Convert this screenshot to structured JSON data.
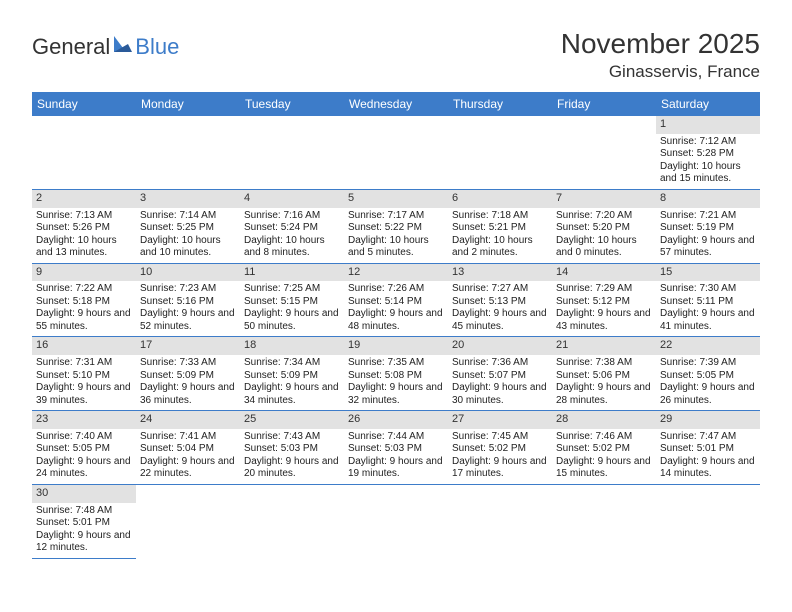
{
  "logo": {
    "general": "General",
    "blue": "Blue"
  },
  "title": "November 2025",
  "location": "Ginasservis, France",
  "weekday_bg": "#3d7cc9",
  "weekday_fg": "#ffffff",
  "band_bg": "#e2e2e2",
  "cell_border": "#3d7cc9",
  "weekdays": [
    "Sunday",
    "Monday",
    "Tuesday",
    "Wednesday",
    "Thursday",
    "Friday",
    "Saturday"
  ],
  "first_weekday_index": 6,
  "days": [
    {
      "n": "1",
      "sunrise": "Sunrise: 7:12 AM",
      "sunset": "Sunset: 5:28 PM",
      "daylight": "Daylight: 10 hours and 15 minutes."
    },
    {
      "n": "2",
      "sunrise": "Sunrise: 7:13 AM",
      "sunset": "Sunset: 5:26 PM",
      "daylight": "Daylight: 10 hours and 13 minutes."
    },
    {
      "n": "3",
      "sunrise": "Sunrise: 7:14 AM",
      "sunset": "Sunset: 5:25 PM",
      "daylight": "Daylight: 10 hours and 10 minutes."
    },
    {
      "n": "4",
      "sunrise": "Sunrise: 7:16 AM",
      "sunset": "Sunset: 5:24 PM",
      "daylight": "Daylight: 10 hours and 8 minutes."
    },
    {
      "n": "5",
      "sunrise": "Sunrise: 7:17 AM",
      "sunset": "Sunset: 5:22 PM",
      "daylight": "Daylight: 10 hours and 5 minutes."
    },
    {
      "n": "6",
      "sunrise": "Sunrise: 7:18 AM",
      "sunset": "Sunset: 5:21 PM",
      "daylight": "Daylight: 10 hours and 2 minutes."
    },
    {
      "n": "7",
      "sunrise": "Sunrise: 7:20 AM",
      "sunset": "Sunset: 5:20 PM",
      "daylight": "Daylight: 10 hours and 0 minutes."
    },
    {
      "n": "8",
      "sunrise": "Sunrise: 7:21 AM",
      "sunset": "Sunset: 5:19 PM",
      "daylight": "Daylight: 9 hours and 57 minutes."
    },
    {
      "n": "9",
      "sunrise": "Sunrise: 7:22 AM",
      "sunset": "Sunset: 5:18 PM",
      "daylight": "Daylight: 9 hours and 55 minutes."
    },
    {
      "n": "10",
      "sunrise": "Sunrise: 7:23 AM",
      "sunset": "Sunset: 5:16 PM",
      "daylight": "Daylight: 9 hours and 52 minutes."
    },
    {
      "n": "11",
      "sunrise": "Sunrise: 7:25 AM",
      "sunset": "Sunset: 5:15 PM",
      "daylight": "Daylight: 9 hours and 50 minutes."
    },
    {
      "n": "12",
      "sunrise": "Sunrise: 7:26 AM",
      "sunset": "Sunset: 5:14 PM",
      "daylight": "Daylight: 9 hours and 48 minutes."
    },
    {
      "n": "13",
      "sunrise": "Sunrise: 7:27 AM",
      "sunset": "Sunset: 5:13 PM",
      "daylight": "Daylight: 9 hours and 45 minutes."
    },
    {
      "n": "14",
      "sunrise": "Sunrise: 7:29 AM",
      "sunset": "Sunset: 5:12 PM",
      "daylight": "Daylight: 9 hours and 43 minutes."
    },
    {
      "n": "15",
      "sunrise": "Sunrise: 7:30 AM",
      "sunset": "Sunset: 5:11 PM",
      "daylight": "Daylight: 9 hours and 41 minutes."
    },
    {
      "n": "16",
      "sunrise": "Sunrise: 7:31 AM",
      "sunset": "Sunset: 5:10 PM",
      "daylight": "Daylight: 9 hours and 39 minutes."
    },
    {
      "n": "17",
      "sunrise": "Sunrise: 7:33 AM",
      "sunset": "Sunset: 5:09 PM",
      "daylight": "Daylight: 9 hours and 36 minutes."
    },
    {
      "n": "18",
      "sunrise": "Sunrise: 7:34 AM",
      "sunset": "Sunset: 5:09 PM",
      "daylight": "Daylight: 9 hours and 34 minutes."
    },
    {
      "n": "19",
      "sunrise": "Sunrise: 7:35 AM",
      "sunset": "Sunset: 5:08 PM",
      "daylight": "Daylight: 9 hours and 32 minutes."
    },
    {
      "n": "20",
      "sunrise": "Sunrise: 7:36 AM",
      "sunset": "Sunset: 5:07 PM",
      "daylight": "Daylight: 9 hours and 30 minutes."
    },
    {
      "n": "21",
      "sunrise": "Sunrise: 7:38 AM",
      "sunset": "Sunset: 5:06 PM",
      "daylight": "Daylight: 9 hours and 28 minutes."
    },
    {
      "n": "22",
      "sunrise": "Sunrise: 7:39 AM",
      "sunset": "Sunset: 5:05 PM",
      "daylight": "Daylight: 9 hours and 26 minutes."
    },
    {
      "n": "23",
      "sunrise": "Sunrise: 7:40 AM",
      "sunset": "Sunset: 5:05 PM",
      "daylight": "Daylight: 9 hours and 24 minutes."
    },
    {
      "n": "24",
      "sunrise": "Sunrise: 7:41 AM",
      "sunset": "Sunset: 5:04 PM",
      "daylight": "Daylight: 9 hours and 22 minutes."
    },
    {
      "n": "25",
      "sunrise": "Sunrise: 7:43 AM",
      "sunset": "Sunset: 5:03 PM",
      "daylight": "Daylight: 9 hours and 20 minutes."
    },
    {
      "n": "26",
      "sunrise": "Sunrise: 7:44 AM",
      "sunset": "Sunset: 5:03 PM",
      "daylight": "Daylight: 9 hours and 19 minutes."
    },
    {
      "n": "27",
      "sunrise": "Sunrise: 7:45 AM",
      "sunset": "Sunset: 5:02 PM",
      "daylight": "Daylight: 9 hours and 17 minutes."
    },
    {
      "n": "28",
      "sunrise": "Sunrise: 7:46 AM",
      "sunset": "Sunset: 5:02 PM",
      "daylight": "Daylight: 9 hours and 15 minutes."
    },
    {
      "n": "29",
      "sunrise": "Sunrise: 7:47 AM",
      "sunset": "Sunset: 5:01 PM",
      "daylight": "Daylight: 9 hours and 14 minutes."
    },
    {
      "n": "30",
      "sunrise": "Sunrise: 7:48 AM",
      "sunset": "Sunset: 5:01 PM",
      "daylight": "Daylight: 9 hours and 12 minutes."
    }
  ]
}
